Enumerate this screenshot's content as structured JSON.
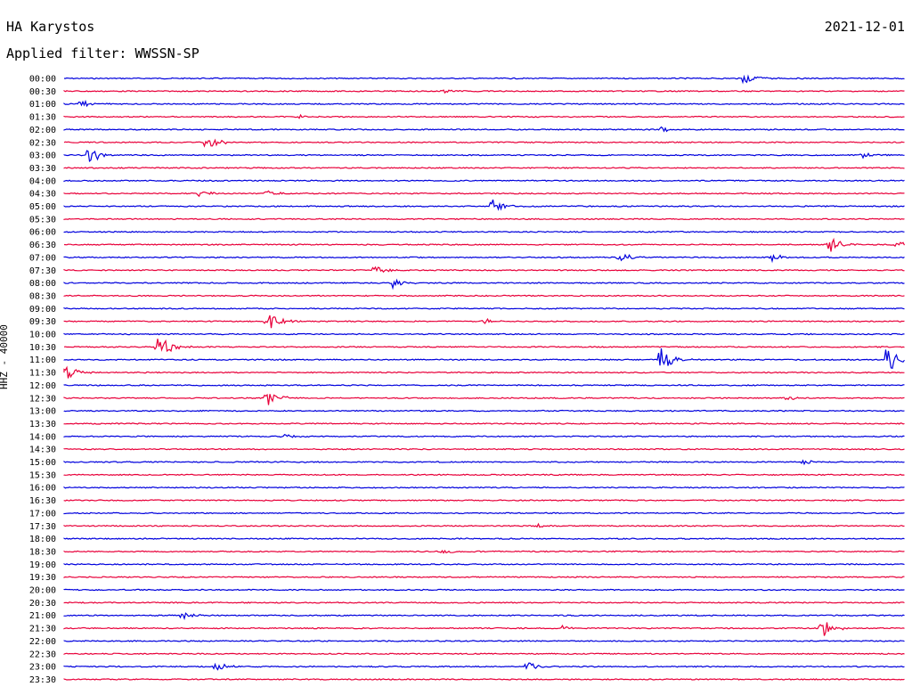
{
  "header": {
    "station": "HA Karystos",
    "date": "2021-12-01",
    "filter": "Applied filter: WWSSN-SP"
  },
  "chart_data": {
    "type": "line",
    "ylabel": "HHZ - 40000",
    "colors": [
      "#0000dd",
      "#e8003a"
    ],
    "rows": [
      "00:00",
      "00:30",
      "01:00",
      "01:30",
      "02:00",
      "02:30",
      "03:00",
      "03:30",
      "04:00",
      "04:30",
      "05:00",
      "05:30",
      "06:00",
      "06:30",
      "07:00",
      "07:30",
      "08:00",
      "08:30",
      "09:00",
      "09:30",
      "10:00",
      "10:30",
      "11:00",
      "11:30",
      "12:00",
      "12:30",
      "13:00",
      "13:30",
      "14:00",
      "14:30",
      "15:00",
      "15:30",
      "16:00",
      "16:30",
      "17:00",
      "17:30",
      "18:00",
      "18:30",
      "19:00",
      "19:30",
      "20:00",
      "20:30",
      "21:00",
      "21:30",
      "22:00",
      "22:30",
      "23:00",
      "23:30"
    ],
    "events": [
      {
        "row": "00:00",
        "x": 0.81,
        "amp": 1.0
      },
      {
        "row": "00:30",
        "x": 0.45,
        "amp": 0.4
      },
      {
        "row": "01:00",
        "x": 0.02,
        "amp": 0.7
      },
      {
        "row": "01:30",
        "x": 0.28,
        "amp": 0.3
      },
      {
        "row": "02:00",
        "x": 0.71,
        "amp": 0.4
      },
      {
        "row": "02:30",
        "x": 0.17,
        "amp": 1.2
      },
      {
        "row": "03:00",
        "x": 0.03,
        "amp": 1.4
      },
      {
        "row": "03:00",
        "x": 0.95,
        "amp": 0.6
      },
      {
        "row": "04:30",
        "x": 0.16,
        "amp": 0.5
      },
      {
        "row": "04:30",
        "x": 0.24,
        "amp": 0.5
      },
      {
        "row": "05:00",
        "x": 0.51,
        "amp": 1.4
      },
      {
        "row": "06:30",
        "x": 0.91,
        "amp": 1.5
      },
      {
        "row": "06:30",
        "x": 0.99,
        "amp": 0.6
      },
      {
        "row": "07:00",
        "x": 0.66,
        "amp": 0.9
      },
      {
        "row": "07:00",
        "x": 0.84,
        "amp": 0.7
      },
      {
        "row": "07:30",
        "x": 0.37,
        "amp": 0.8
      },
      {
        "row": "08:00",
        "x": 0.39,
        "amp": 0.8
      },
      {
        "row": "09:30",
        "x": 0.24,
        "amp": 2.2
      },
      {
        "row": "09:30",
        "x": 0.5,
        "amp": 0.4
      },
      {
        "row": "10:30",
        "x": 0.11,
        "amp": 2.6
      },
      {
        "row": "11:00",
        "x": 0.71,
        "amp": 1.9
      },
      {
        "row": "11:00",
        "x": 0.98,
        "amp": 2.8
      },
      {
        "row": "11:30",
        "x": 0.0,
        "amp": 1.4
      },
      {
        "row": "12:30",
        "x": 0.24,
        "amp": 1.5
      },
      {
        "row": "12:30",
        "x": 0.86,
        "amp": 0.4
      },
      {
        "row": "14:00",
        "x": 0.26,
        "amp": 0.5
      },
      {
        "row": "15:00",
        "x": 0.88,
        "amp": 0.4
      },
      {
        "row": "17:30",
        "x": 0.56,
        "amp": 0.5
      },
      {
        "row": "18:30",
        "x": 0.45,
        "amp": 0.4
      },
      {
        "row": "21:00",
        "x": 0.14,
        "amp": 0.5
      },
      {
        "row": "21:30",
        "x": 0.59,
        "amp": 0.4
      },
      {
        "row": "21:30",
        "x": 0.9,
        "amp": 1.6
      },
      {
        "row": "23:00",
        "x": 0.18,
        "amp": 0.7
      },
      {
        "row": "23:00",
        "x": 0.55,
        "amp": 0.8
      }
    ],
    "grid": false
  }
}
